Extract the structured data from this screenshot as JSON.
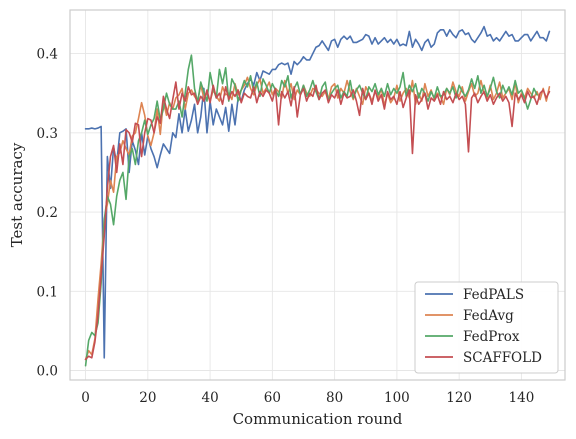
{
  "chart_data": {
    "type": "line",
    "xlabel": "Communication round",
    "ylabel": "Test accuracy",
    "xlim": [
      -5,
      154
    ],
    "ylim": [
      -0.012,
      0.455
    ],
    "xticks": [
      0,
      20,
      40,
      60,
      80,
      100,
      120,
      140
    ],
    "yticks": [
      0.0,
      0.1,
      0.2,
      0.3,
      0.4
    ],
    "ytick_labels": [
      "0.0",
      "0.1",
      "0.2",
      "0.3",
      "0.4"
    ],
    "grid": true,
    "legend_position": "lower-right",
    "series": [
      {
        "name": "FedPALS",
        "color": "#4c72b0",
        "values": [
          0.305,
          0.305,
          0.306,
          0.305,
          0.306,
          0.308,
          0.016,
          0.27,
          0.23,
          0.282,
          0.262,
          0.3,
          0.302,
          0.305,
          0.25,
          0.29,
          0.278,
          0.26,
          0.3,
          0.272,
          0.296,
          0.28,
          0.27,
          0.256,
          0.272,
          0.286,
          0.28,
          0.274,
          0.3,
          0.294,
          0.324,
          0.3,
          0.33,
          0.302,
          0.316,
          0.336,
          0.3,
          0.32,
          0.356,
          0.3,
          0.34,
          0.31,
          0.33,
          0.32,
          0.31,
          0.332,
          0.302,
          0.336,
          0.31,
          0.344,
          0.34,
          0.354,
          0.362,
          0.368,
          0.36,
          0.376,
          0.366,
          0.378,
          0.376,
          0.374,
          0.38,
          0.38,
          0.386,
          0.388,
          0.386,
          0.388,
          0.374,
          0.39,
          0.386,
          0.39,
          0.396,
          0.392,
          0.392,
          0.4,
          0.408,
          0.41,
          0.416,
          0.41,
          0.404,
          0.416,
          0.418,
          0.408,
          0.418,
          0.422,
          0.418,
          0.422,
          0.414,
          0.414,
          0.416,
          0.418,
          0.424,
          0.422,
          0.412,
          0.42,
          0.412,
          0.416,
          0.42,
          0.414,
          0.418,
          0.412,
          0.418,
          0.41,
          0.412,
          0.41,
          0.428,
          0.408,
          0.418,
          0.412,
          0.404,
          0.414,
          0.418,
          0.408,
          0.412,
          0.426,
          0.43,
          0.43,
          0.422,
          0.43,
          0.424,
          0.42,
          0.428,
          0.43,
          0.424,
          0.426,
          0.418,
          0.414,
          0.42,
          0.426,
          0.434,
          0.422,
          0.424,
          0.416,
          0.42,
          0.416,
          0.422,
          0.428,
          0.422,
          0.424,
          0.416,
          0.416,
          0.42,
          0.424,
          0.424,
          0.416,
          0.422,
          0.428,
          0.42,
          0.42,
          0.416,
          0.428
        ]
      },
      {
        "name": "FedAvg",
        "color": "#dd8452",
        "values": [
          0.014,
          0.025,
          0.02,
          0.04,
          0.09,
          0.135,
          0.19,
          0.21,
          0.24,
          0.225,
          0.27,
          0.275,
          0.29,
          0.28,
          0.272,
          0.296,
          0.3,
          0.318,
          0.338,
          0.322,
          0.296,
          0.284,
          0.3,
          0.33,
          0.298,
          0.34,
          0.322,
          0.338,
          0.33,
          0.344,
          0.348,
          0.356,
          0.33,
          0.35,
          0.354,
          0.346,
          0.34,
          0.36,
          0.344,
          0.35,
          0.34,
          0.354,
          0.346,
          0.34,
          0.358,
          0.348,
          0.35,
          0.342,
          0.362,
          0.348,
          0.354,
          0.36,
          0.37,
          0.356,
          0.348,
          0.36,
          0.368,
          0.35,
          0.356,
          0.364,
          0.348,
          0.356,
          0.352,
          0.344,
          0.366,
          0.35,
          0.362,
          0.342,
          0.354,
          0.348,
          0.36,
          0.35,
          0.346,
          0.356,
          0.354,
          0.35,
          0.346,
          0.352,
          0.342,
          0.358,
          0.362,
          0.344,
          0.356,
          0.35,
          0.366,
          0.352,
          0.342,
          0.356,
          0.346,
          0.336,
          0.358,
          0.35,
          0.34,
          0.352,
          0.344,
          0.356,
          0.334,
          0.35,
          0.338,
          0.344,
          0.36,
          0.34,
          0.35,
          0.356,
          0.344,
          0.366,
          0.336,
          0.35,
          0.34,
          0.362,
          0.346,
          0.354,
          0.342,
          0.35,
          0.346,
          0.336,
          0.356,
          0.348,
          0.364,
          0.352,
          0.346,
          0.358,
          0.34,
          0.352,
          0.362,
          0.346,
          0.35,
          0.366,
          0.35,
          0.344,
          0.36,
          0.342,
          0.35,
          0.364,
          0.344,
          0.35,
          0.356,
          0.342,
          0.364,
          0.338,
          0.35,
          0.344,
          0.356,
          0.35,
          0.344,
          0.352,
          0.342,
          0.356,
          0.34,
          0.358
        ]
      },
      {
        "name": "FedProx",
        "color": "#55a868",
        "values": [
          0.006,
          0.038,
          0.048,
          0.044,
          0.06,
          0.11,
          0.19,
          0.22,
          0.21,
          0.184,
          0.22,
          0.24,
          0.25,
          0.216,
          0.27,
          0.28,
          0.26,
          0.29,
          0.3,
          0.316,
          0.298,
          0.31,
          0.318,
          0.34,
          0.316,
          0.33,
          0.35,
          0.336,
          0.33,
          0.33,
          0.34,
          0.32,
          0.35,
          0.38,
          0.398,
          0.356,
          0.338,
          0.364,
          0.352,
          0.34,
          0.376,
          0.356,
          0.344,
          0.38,
          0.362,
          0.382,
          0.34,
          0.368,
          0.36,
          0.34,
          0.354,
          0.366,
          0.358,
          0.372,
          0.352,
          0.364,
          0.346,
          0.368,
          0.36,
          0.35,
          0.362,
          0.354,
          0.346,
          0.366,
          0.358,
          0.372,
          0.344,
          0.356,
          0.364,
          0.348,
          0.36,
          0.346,
          0.354,
          0.366,
          0.352,
          0.342,
          0.358,
          0.364,
          0.34,
          0.35,
          0.356,
          0.36,
          0.344,
          0.352,
          0.346,
          0.366,
          0.344,
          0.354,
          0.36,
          0.35,
          0.342,
          0.358,
          0.352,
          0.362,
          0.348,
          0.356,
          0.346,
          0.362,
          0.348,
          0.356,
          0.35,
          0.358,
          0.376,
          0.346,
          0.36,
          0.352,
          0.362,
          0.344,
          0.356,
          0.35,
          0.34,
          0.352,
          0.344,
          0.358,
          0.346,
          0.348,
          0.356,
          0.35,
          0.358,
          0.344,
          0.36,
          0.352,
          0.346,
          0.354,
          0.368,
          0.356,
          0.372,
          0.35,
          0.36,
          0.346,
          0.356,
          0.37,
          0.352,
          0.344,
          0.36,
          0.35,
          0.358,
          0.348,
          0.366,
          0.35,
          0.354,
          0.344,
          0.33,
          0.342,
          0.356,
          0.348
        ]
      },
      {
        "name": "SCAFFOLD",
        "color": "#c44e52",
        "values": [
          0.014,
          0.018,
          0.016,
          0.036,
          0.07,
          0.12,
          0.17,
          0.23,
          0.27,
          0.284,
          0.25,
          0.286,
          0.26,
          0.304,
          0.3,
          0.288,
          0.312,
          0.31,
          0.27,
          0.3,
          0.318,
          0.316,
          0.3,
          0.32,
          0.312,
          0.346,
          0.33,
          0.318,
          0.342,
          0.364,
          0.33,
          0.35,
          0.34,
          0.358,
          0.348,
          0.35,
          0.336,
          0.346,
          0.34,
          0.354,
          0.338,
          0.36,
          0.344,
          0.35,
          0.336,
          0.358,
          0.342,
          0.352,
          0.346,
          0.354,
          0.338,
          0.35,
          0.346,
          0.344,
          0.358,
          0.338,
          0.352,
          0.346,
          0.354,
          0.35,
          0.34,
          0.356,
          0.31,
          0.352,
          0.344,
          0.352,
          0.334,
          0.358,
          0.32,
          0.348,
          0.356,
          0.34,
          0.35,
          0.346,
          0.36,
          0.342,
          0.35,
          0.354,
          0.338,
          0.348,
          0.344,
          0.354,
          0.336,
          0.35,
          0.344,
          0.346,
          0.354,
          0.34,
          0.322,
          0.356,
          0.342,
          0.35,
          0.336,
          0.354,
          0.34,
          0.348,
          0.33,
          0.352,
          0.342,
          0.346,
          0.336,
          0.352,
          0.332,
          0.344,
          0.354,
          0.274,
          0.348,
          0.336,
          0.342,
          0.35,
          0.33,
          0.344,
          0.34,
          0.348,
          0.336,
          0.352,
          0.342,
          0.346,
          0.338,
          0.35,
          0.342,
          0.346,
          0.336,
          0.276,
          0.344,
          0.35,
          0.338,
          0.346,
          0.352,
          0.34,
          0.348,
          0.336,
          0.344,
          0.35,
          0.34,
          0.346,
          0.338,
          0.308,
          0.35,
          0.342,
          0.348,
          0.338,
          0.352,
          0.344,
          0.346,
          0.336,
          0.35,
          0.354,
          0.344,
          0.352
        ]
      }
    ]
  }
}
